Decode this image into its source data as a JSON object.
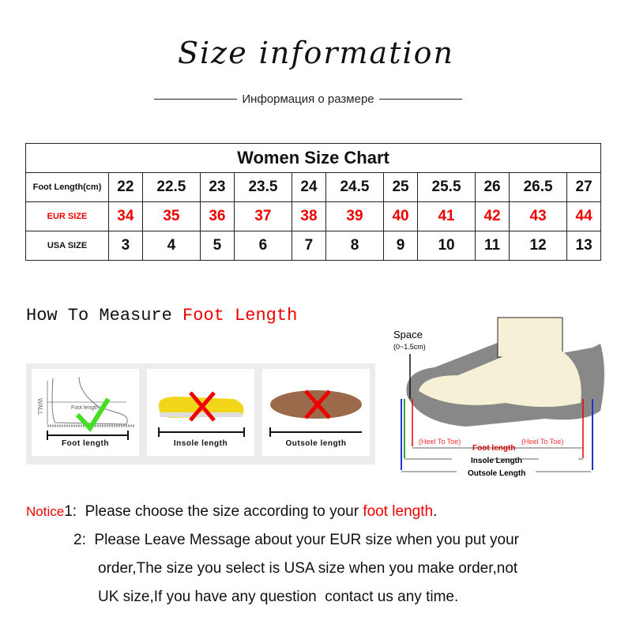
{
  "header": {
    "title": "Size information",
    "subtitle": "Информация о размере"
  },
  "size_chart": {
    "title": "Women Size Chart",
    "rows": [
      {
        "label": "Foot Length(cm)",
        "values": [
          "22",
          "22.5",
          "23",
          "23.5",
          "24",
          "24.5",
          "25",
          "25.5",
          "26",
          "26.5",
          "27"
        ],
        "color": "#111111"
      },
      {
        "label": "EUR SIZE",
        "values": [
          "34",
          "35",
          "36",
          "37",
          "38",
          "39",
          "40",
          "41",
          "42",
          "43",
          "44"
        ],
        "color": "#ee0000"
      },
      {
        "label": "USA SIZE",
        "values": [
          "3",
          "4",
          "5",
          "6",
          "7",
          "8",
          "9",
          "10",
          "11",
          "12",
          "13"
        ],
        "color": "#111111"
      }
    ]
  },
  "measure": {
    "heading_black": "How To Measure ",
    "heading_red": "Foot Length",
    "cards": [
      {
        "label": "Foot length",
        "wall": "WALL",
        "inner": "Foot length",
        "mark": "check-icon"
      },
      {
        "label": "Insole length",
        "mark": "x-icon"
      },
      {
        "label": "Outsole length",
        "mark": "x-icon"
      }
    ],
    "diagram": {
      "space": "Space",
      "space_range": "(0~1.5cm)",
      "heel_to_toe": "(Heel To Toe)",
      "foot_length": "Foot length",
      "insole_length": "Insole Length",
      "outsole_length": "Outsole Length"
    }
  },
  "notes": {
    "notice": "Notice",
    "n1": "1:",
    "line1a": "Please choose the size according to your ",
    "line1b": "foot length",
    "line1c": ".",
    "n2": "2:",
    "line2": "Please Leave Message about your EUR size when you put your",
    "line3": "order,The size you select is USA size when you make order,not",
    "line4": "UK size,If you have any question  contact us any time."
  },
  "colors": {
    "accent": "#ee0000",
    "check": "#44dd22"
  }
}
